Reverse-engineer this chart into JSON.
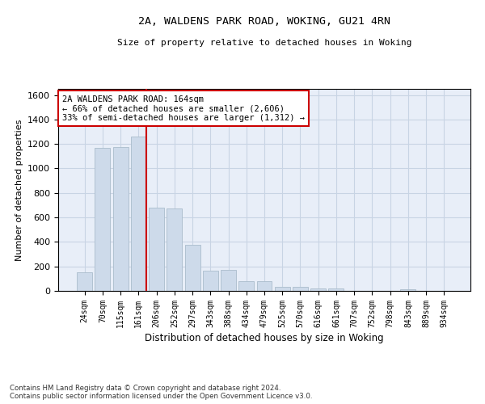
{
  "title_line1": "2A, WALDENS PARK ROAD, WOKING, GU21 4RN",
  "title_line2": "Size of property relative to detached houses in Woking",
  "xlabel": "Distribution of detached houses by size in Woking",
  "ylabel": "Number of detached properties",
  "bar_color": "#cddaea",
  "bar_edge_color": "#aabccc",
  "grid_color": "#c8d4e4",
  "background_color": "#e8eef8",
  "categories": [
    "24sqm",
    "70sqm",
    "115sqm",
    "161sqm",
    "206sqm",
    "252sqm",
    "297sqm",
    "343sqm",
    "388sqm",
    "434sqm",
    "479sqm",
    "525sqm",
    "570sqm",
    "616sqm",
    "661sqm",
    "707sqm",
    "752sqm",
    "798sqm",
    "843sqm",
    "889sqm",
    "934sqm"
  ],
  "values": [
    150,
    1170,
    1175,
    1260,
    680,
    670,
    375,
    165,
    170,
    80,
    80,
    35,
    30,
    20,
    20,
    0,
    0,
    0,
    15,
    0,
    0
  ],
  "vline_color": "#cc0000",
  "annotation_text": "2A WALDENS PARK ROAD: 164sqm\n← 66% of detached houses are smaller (2,606)\n33% of semi-detached houses are larger (1,312) →",
  "annotation_box_color": "#ffffff",
  "annotation_box_edge_color": "#cc0000",
  "ylim": [
    0,
    1650
  ],
  "yticks": [
    0,
    200,
    400,
    600,
    800,
    1000,
    1200,
    1400,
    1600
  ],
  "footnote": "Contains HM Land Registry data © Crown copyright and database right 2024.\nContains public sector information licensed under the Open Government Licence v3.0."
}
